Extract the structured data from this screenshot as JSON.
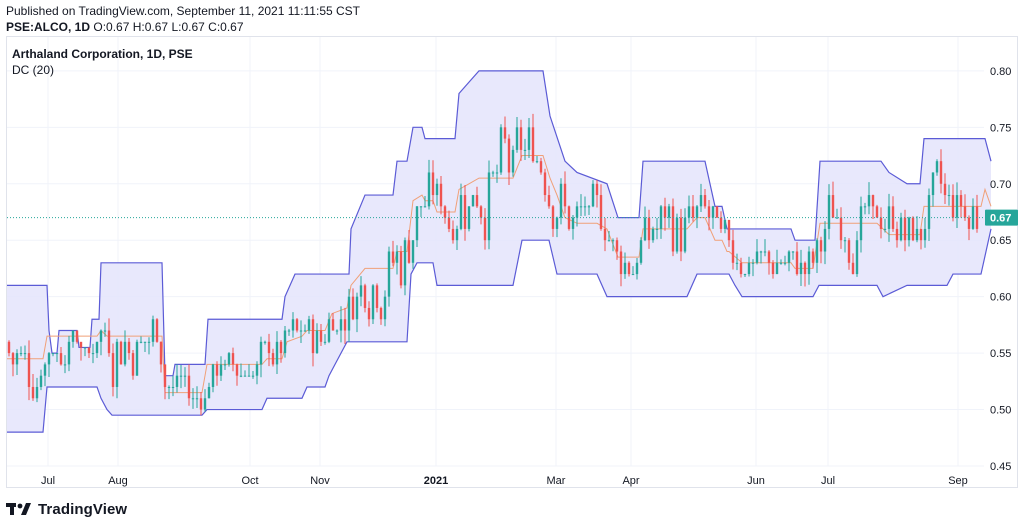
{
  "header": {
    "published": "Published on TradingView.com, September 11, 2021 11:11:55 CST",
    "symbol": "PSE:ALCO, 1D",
    "o_label": "O:",
    "o": "0.67",
    "h_label": "H:",
    "h": "0.67",
    "l_label": "L:",
    "l": "0.67",
    "c_label": "C:",
    "c": "0.67"
  },
  "legend": {
    "title": "Arthaland Corporation, 1D, PSE",
    "indicator": "DC (20)"
  },
  "footer": {
    "brand": "TradingView",
    "logo_icon": "tradingview-logo-icon"
  },
  "colors": {
    "up": "#26a69a",
    "down": "#ef5350",
    "channel_line": "#5b5bd6",
    "channel_fill": "#e4e4fb",
    "basis": "#f0a078",
    "last_price_bg": "#26a69a",
    "price_line": "#26a69a"
  },
  "chart_data": {
    "type": "candlestick",
    "title": "Arthaland Corporation, 1D, PSE",
    "indicator": "Donchian Channels (20)",
    "ylim": [
      0.45,
      0.83
    ],
    "yticks": [
      "0.80",
      "0.75",
      "0.70",
      "0.65",
      "0.60",
      "0.55",
      "0.50",
      "0.45"
    ],
    "x_labels": [
      "Jul",
      "Aug",
      "Oct",
      "Nov",
      "2021",
      "Mar",
      "Apr",
      "Jun",
      "Jul",
      "Sep"
    ],
    "last_price": "0.67",
    "grid": true,
    "channel_upper": [
      [
        0,
        0.61
      ],
      [
        40,
        0.61
      ],
      [
        42,
        0.57
      ],
      [
        45,
        0.55
      ],
      [
        50,
        0.55
      ],
      [
        52,
        0.57
      ],
      [
        70,
        0.57
      ],
      [
        72,
        0.555
      ],
      [
        83,
        0.555
      ],
      [
        85,
        0.58
      ],
      [
        92,
        0.58
      ],
      [
        94,
        0.63
      ],
      [
        155,
        0.63
      ],
      [
        158,
        0.53
      ],
      [
        166,
        0.53
      ],
      [
        168,
        0.54
      ],
      [
        198,
        0.54
      ],
      [
        201,
        0.58
      ],
      [
        275,
        0.58
      ],
      [
        278,
        0.6
      ],
      [
        288,
        0.62
      ],
      [
        342,
        0.62
      ],
      [
        344,
        0.66
      ],
      [
        358,
        0.69
      ],
      [
        386,
        0.69
      ],
      [
        390,
        0.72
      ],
      [
        400,
        0.72
      ],
      [
        406,
        0.75
      ],
      [
        415,
        0.75
      ],
      [
        418,
        0.74
      ],
      [
        448,
        0.74
      ],
      [
        452,
        0.78
      ],
      [
        462,
        0.79
      ],
      [
        472,
        0.8
      ],
      [
        536,
        0.8
      ],
      [
        543,
        0.76
      ],
      [
        558,
        0.72
      ],
      [
        570,
        0.71
      ],
      [
        600,
        0.7
      ],
      [
        611,
        0.67
      ],
      [
        632,
        0.67
      ],
      [
        636,
        0.72
      ],
      [
        698,
        0.72
      ],
      [
        708,
        0.68
      ],
      [
        715,
        0.68
      ],
      [
        720,
        0.66
      ],
      [
        784,
        0.66
      ],
      [
        788,
        0.65
      ],
      [
        808,
        0.65
      ],
      [
        813,
        0.72
      ],
      [
        874,
        0.72
      ],
      [
        882,
        0.71
      ],
      [
        900,
        0.7
      ],
      [
        913,
        0.7
      ],
      [
        917,
        0.74
      ],
      [
        978,
        0.74
      ],
      [
        984,
        0.72
      ]
    ],
    "channel_lower": [
      [
        0,
        0.48
      ],
      [
        36,
        0.48
      ],
      [
        40,
        0.52
      ],
      [
        90,
        0.52
      ],
      [
        94,
        0.51
      ],
      [
        100,
        0.5
      ],
      [
        105,
        0.495
      ],
      [
        195,
        0.495
      ],
      [
        200,
        0.5
      ],
      [
        255,
        0.5
      ],
      [
        260,
        0.51
      ],
      [
        295,
        0.51
      ],
      [
        300,
        0.52
      ],
      [
        318,
        0.52
      ],
      [
        322,
        0.53
      ],
      [
        328,
        0.54
      ],
      [
        340,
        0.56
      ],
      [
        400,
        0.56
      ],
      [
        404,
        0.62
      ],
      [
        410,
        0.63
      ],
      [
        426,
        0.63
      ],
      [
        430,
        0.61
      ],
      [
        440,
        0.61
      ],
      [
        506,
        0.61
      ],
      [
        515,
        0.65
      ],
      [
        542,
        0.65
      ],
      [
        550,
        0.62
      ],
      [
        590,
        0.62
      ],
      [
        600,
        0.6
      ],
      [
        680,
        0.6
      ],
      [
        690,
        0.62
      ],
      [
        722,
        0.62
      ],
      [
        728,
        0.61
      ],
      [
        735,
        0.6
      ],
      [
        806,
        0.6
      ],
      [
        812,
        0.61
      ],
      [
        870,
        0.61
      ],
      [
        876,
        0.6
      ],
      [
        900,
        0.61
      ],
      [
        940,
        0.61
      ],
      [
        946,
        0.62
      ],
      [
        974,
        0.62
      ],
      [
        984,
        0.66
      ]
    ],
    "basis": [
      [
        0,
        0.545
      ],
      [
        36,
        0.545
      ],
      [
        40,
        0.565
      ],
      [
        90,
        0.565
      ],
      [
        94,
        0.57
      ],
      [
        100,
        0.565
      ],
      [
        155,
        0.565
      ],
      [
        158,
        0.515
      ],
      [
        195,
        0.515
      ],
      [
        200,
        0.54
      ],
      [
        255,
        0.54
      ],
      [
        260,
        0.545
      ],
      [
        275,
        0.545
      ],
      [
        280,
        0.56
      ],
      [
        295,
        0.565
      ],
      [
        300,
        0.57
      ],
      [
        318,
        0.57
      ],
      [
        325,
        0.585
      ],
      [
        340,
        0.59
      ],
      [
        344,
        0.61
      ],
      [
        358,
        0.625
      ],
      [
        386,
        0.625
      ],
      [
        390,
        0.64
      ],
      [
        400,
        0.64
      ],
      [
        406,
        0.685
      ],
      [
        415,
        0.69
      ],
      [
        418,
        0.685
      ],
      [
        426,
        0.685
      ],
      [
        430,
        0.675
      ],
      [
        440,
        0.675
      ],
      [
        448,
        0.675
      ],
      [
        452,
        0.695
      ],
      [
        462,
        0.7
      ],
      [
        472,
        0.705
      ],
      [
        506,
        0.705
      ],
      [
        515,
        0.725
      ],
      [
        536,
        0.725
      ],
      [
        543,
        0.705
      ],
      [
        550,
        0.69
      ],
      [
        558,
        0.67
      ],
      [
        570,
        0.665
      ],
      [
        590,
        0.665
      ],
      [
        600,
        0.66
      ],
      [
        611,
        0.635
      ],
      [
        632,
        0.635
      ],
      [
        636,
        0.66
      ],
      [
        680,
        0.66
      ],
      [
        690,
        0.67
      ],
      [
        698,
        0.67
      ],
      [
        708,
        0.65
      ],
      [
        715,
        0.65
      ],
      [
        720,
        0.64
      ],
      [
        722,
        0.64
      ],
      [
        735,
        0.63
      ],
      [
        784,
        0.63
      ],
      [
        788,
        0.625
      ],
      [
        806,
        0.625
      ],
      [
        813,
        0.665
      ],
      [
        870,
        0.665
      ],
      [
        876,
        0.66
      ],
      [
        882,
        0.655
      ],
      [
        900,
        0.655
      ],
      [
        913,
        0.655
      ],
      [
        917,
        0.68
      ],
      [
        940,
        0.68
      ],
      [
        946,
        0.68
      ],
      [
        974,
        0.68
      ],
      [
        978,
        0.695
      ],
      [
        984,
        0.68
      ]
    ]
  }
}
